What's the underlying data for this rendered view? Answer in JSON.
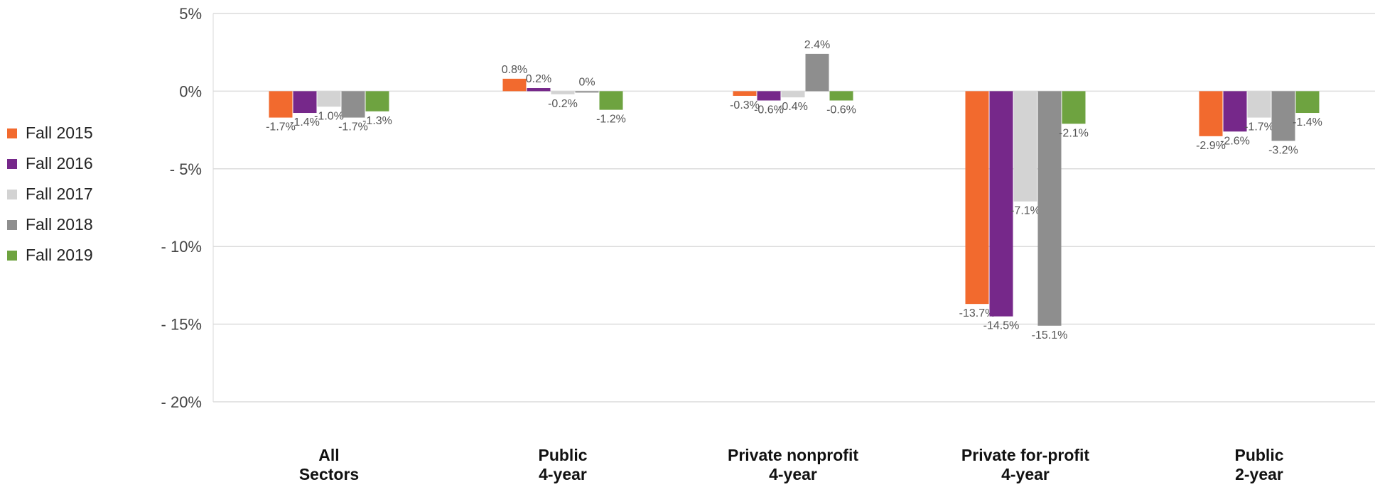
{
  "chart_data": {
    "type": "bar",
    "categories": [
      [
        "All",
        "Sectors"
      ],
      [
        "Public",
        "4-year"
      ],
      [
        "Private nonprofit",
        "4-year"
      ],
      [
        "Private for-profit",
        "4-year"
      ],
      [
        "Public",
        "2-year"
      ]
    ],
    "series": [
      {
        "name": "Fall 2015",
        "color": "#F26A2E",
        "values": [
          -1.7,
          0.8,
          -0.3,
          -13.7,
          -2.9
        ],
        "labels": [
          "-1.7%",
          "0.8%",
          "-0.3%",
          "-13.7%",
          "-2.9%"
        ]
      },
      {
        "name": "Fall 2016",
        "color": "#76288A",
        "values": [
          -1.4,
          0.2,
          -0.6,
          -14.5,
          -2.6
        ],
        "labels": [
          "-1.4%",
          "0.2%",
          "-0.6%",
          "-14.5%",
          "-2.6%"
        ]
      },
      {
        "name": "Fall 2017",
        "color": "#D3D3D3",
        "values": [
          -1.0,
          -0.2,
          -0.4,
          -7.1,
          -1.7
        ],
        "labels": [
          "-1.0%",
          "-0.2%",
          "-0.4%",
          "-7.1%",
          "-1.7%"
        ]
      },
      {
        "name": "Fall 2018",
        "color": "#8E8E8E",
        "values": [
          -1.7,
          0.0,
          2.4,
          -15.1,
          -3.2
        ],
        "labels": [
          "-1.7%",
          "0%",
          "2.4%",
          "-15.1%",
          "-3.2%"
        ]
      },
      {
        "name": "Fall 2019",
        "color": "#6EA340",
        "values": [
          -1.3,
          -1.2,
          -0.6,
          -2.1,
          -1.4
        ],
        "labels": [
          "-1.3%",
          "-1.2%",
          "-0.6%",
          "-2.1%",
          "-1.4%"
        ]
      }
    ],
    "yticks": [
      5,
      0,
      -5,
      -10,
      -15,
      -20
    ],
    "ytick_labels": [
      "5%",
      "0%",
      "- 5%",
      "- 10%",
      "- 15%",
      "- 20%"
    ],
    "ylim": [
      -20,
      5
    ],
    "grid": true,
    "legend_position": "left",
    "title": "",
    "xlabel": "",
    "ylabel": ""
  }
}
